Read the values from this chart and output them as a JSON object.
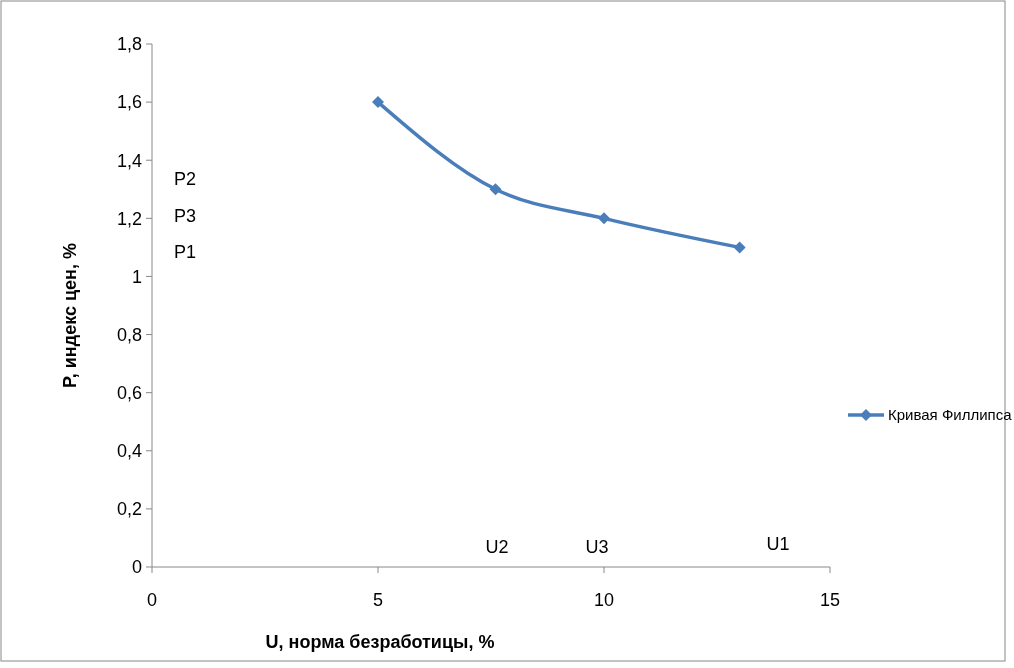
{
  "chart_data": {
    "type": "line",
    "xlabel": "U, норма безработицы, %",
    "ylabel": "P, индекс цен, %",
    "x": [
      5,
      7.6,
      10,
      13
    ],
    "series": [
      {
        "name": "Кривая Филлипса",
        "color": "#4a7ebb",
        "values": [
          1.6,
          1.3,
          1.2,
          1.1
        ]
      }
    ],
    "xlim": [
      0,
      15
    ],
    "xticks": [
      0,
      5,
      10,
      15
    ],
    "ylim": [
      0,
      1.8
    ],
    "yticks": [
      {
        "value": 0,
        "label": "0"
      },
      {
        "value": 0.2,
        "label": "0,2"
      },
      {
        "value": 0.4,
        "label": "0,4"
      },
      {
        "value": 0.6,
        "label": "0,6"
      },
      {
        "value": 0.8,
        "label": "0,8"
      },
      {
        "value": 1,
        "label": "1"
      },
      {
        "value": 1.2,
        "label": "1,2"
      },
      {
        "value": 1.4,
        "label": "1,4"
      },
      {
        "value": 1.6,
        "label": "1,6"
      },
      {
        "value": 1.8,
        "label": "1,8"
      }
    ],
    "annotations": [
      "P2",
      "P3",
      "P1",
      "U2",
      "U3",
      "U1"
    ],
    "grid": false,
    "legend": "right",
    "marker": "diamond",
    "line_style": "solid"
  }
}
